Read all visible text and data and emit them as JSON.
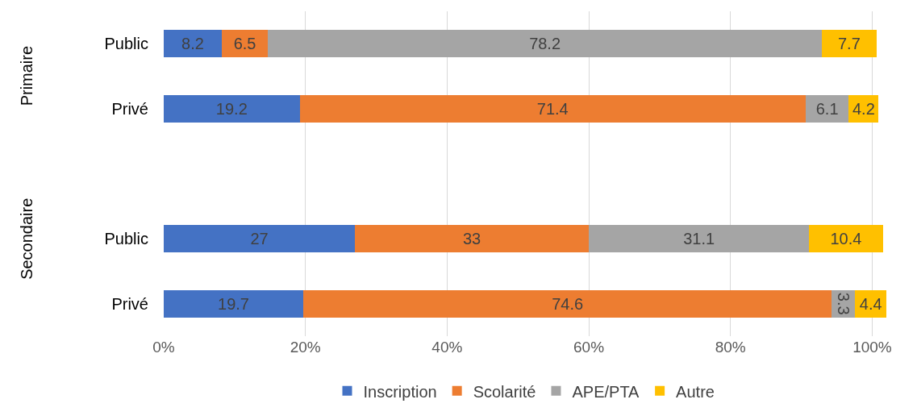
{
  "chart_data": {
    "type": "bar",
    "orientation": "horizontal",
    "stacked": true,
    "categories": [
      "Public",
      "Privé",
      null,
      "Public",
      "Privé"
    ],
    "series": [
      {
        "name": "Inscription",
        "color": "#4472c4",
        "values": [
          8.2,
          19.2,
          null,
          27,
          19.7
        ]
      },
      {
        "name": "Scolarité",
        "color": "#ed7d31",
        "values": [
          6.5,
          71.4,
          null,
          33,
          74.6
        ]
      },
      {
        "name": "APE/PTA",
        "color": "#a5a5a5",
        "values": [
          78.2,
          6.1,
          null,
          31.1,
          3.3
        ]
      },
      {
        "name": "Autre",
        "color": "#ffc000",
        "values": [
          7.7,
          4.2,
          null,
          10.4,
          4.4
        ]
      }
    ],
    "xlim": [
      0,
      102
    ],
    "xticks": [
      {
        "value": 0,
        "label": "0%"
      },
      {
        "value": 20,
        "label": "20%"
      },
      {
        "value": 40,
        "label": "40%"
      },
      {
        "value": 60,
        "label": "60%"
      },
      {
        "value": 80,
        "label": "80%"
      },
      {
        "value": 100,
        "label": "100%"
      }
    ],
    "annotations": [
      "Primaire",
      "Secondaire"
    ],
    "data_labels": true,
    "grid": "x",
    "legend": "bottom"
  }
}
